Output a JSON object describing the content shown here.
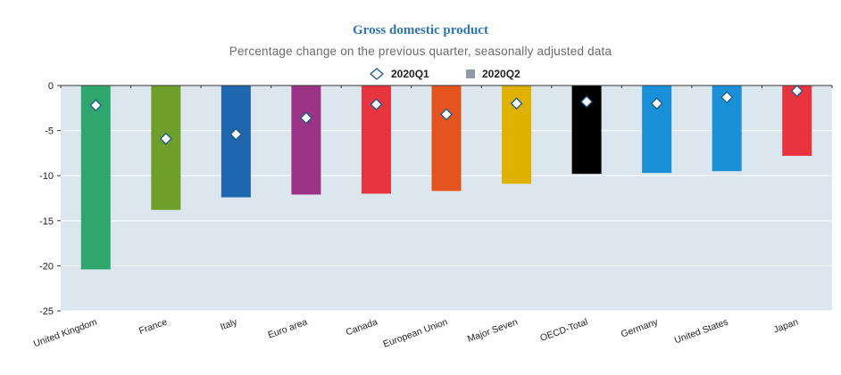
{
  "chart_data": {
    "type": "bar",
    "title": "Gross domestic product",
    "subtitle": "Percentage change on the previous quarter, seasonally adjusted data",
    "categories": [
      "United Kingdom",
      "France",
      "Italy",
      "Euro area",
      "Canada",
      "European Union",
      "Major Seven",
      "OECD-Total",
      "Germany",
      "United States",
      "Japan"
    ],
    "series": [
      {
        "name": "2020Q1",
        "marker": "diamond",
        "values": [
          -2.2,
          -5.9,
          -5.4,
          -3.6,
          -2.1,
          -3.2,
          -2.0,
          -1.8,
          -2.0,
          -1.3,
          -0.6
        ]
      },
      {
        "name": "2020Q2",
        "marker": "bar",
        "values": [
          -20.4,
          -13.8,
          -12.4,
          -12.1,
          -12.0,
          -11.7,
          -10.9,
          -9.8,
          -9.7,
          -9.5,
          -7.8
        ]
      }
    ],
    "bar_colors": [
      "#2fa66e",
      "#6f9f2a",
      "#1e67ae",
      "#9b3486",
      "#e8343f",
      "#e5541e",
      "#e0b200",
      "#000000",
      "#1a90d9",
      "#1a90d9",
      "#e8343f"
    ],
    "plot_background": "#dbe6ee",
    "legend_q2_color": "#8c9ba7",
    "ylim": [
      -25,
      0
    ],
    "yticks": [
      0,
      -5,
      -10,
      -15,
      -20,
      -25
    ],
    "ytick_labels": [
      "0",
      "-5",
      "-10",
      "-15",
      "-20",
      "-25"
    ],
    "legend_position": "top-center",
    "grid": true
  }
}
